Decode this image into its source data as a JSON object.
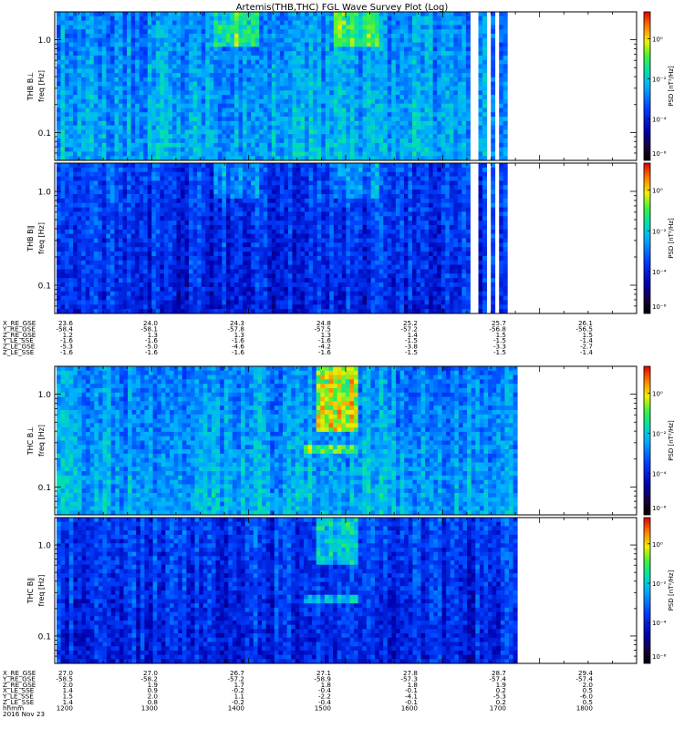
{
  "title": "Artemis(THB,THC) FGL Wave Survey Plot (Log)",
  "chart_data": [
    {
      "type": "heatmap",
      "probe": "THB",
      "component": "perp",
      "ylabel": "THB B⊥",
      "yunit": "freq [Hz]",
      "yscale": "log",
      "ylim": [
        0.05,
        2.0
      ],
      "yticks": [
        {
          "v": 1.0,
          "label": "1.0"
        },
        {
          "v": 0.1,
          "label": "0.1"
        }
      ],
      "data_extent_fraction": 0.785,
      "gap_regions": [
        [
          0.715,
          0.73
        ],
        [
          0.74,
          0.75
        ],
        [
          0.758,
          0.763
        ],
        [
          0.778,
          0.783
        ]
      ],
      "features": [
        {
          "t": [
            0.27,
            0.35
          ],
          "f": [
            0.8,
            2.0
          ],
          "level": "high"
        },
        {
          "t": [
            0.48,
            0.56
          ],
          "f": [
            0.8,
            2.0
          ],
          "level": "high"
        }
      ],
      "colorbar": {
        "label": "PSD [nT²/Hz]",
        "scale": "log",
        "ticks": [
          "10⁰",
          "10⁻²",
          "10⁻⁴",
          "10⁻⁶"
        ]
      }
    },
    {
      "type": "heatmap",
      "probe": "THB",
      "component": "par",
      "ylabel": "THB B∥",
      "yunit": "freq [Hz]",
      "yscale": "log",
      "ylim": [
        0.05,
        2.0
      ],
      "yticks": [
        {
          "v": 1.0,
          "label": "1.0"
        },
        {
          "v": 0.1,
          "label": "0.1"
        }
      ],
      "data_extent_fraction": 0.785,
      "gap_regions": [
        [
          0.715,
          0.73
        ],
        [
          0.74,
          0.75
        ],
        [
          0.758,
          0.763
        ],
        [
          0.778,
          0.783
        ]
      ],
      "features": [
        {
          "t": [
            0.27,
            0.35
          ],
          "f": [
            0.8,
            2.0
          ],
          "level": "medium"
        },
        {
          "t": [
            0.48,
            0.56
          ],
          "f": [
            0.8,
            2.0
          ],
          "level": "medium"
        }
      ],
      "colorbar": {
        "label": "PSD [nT²/Hz]",
        "scale": "log",
        "ticks": [
          "10⁰",
          "10⁻²",
          "10⁻⁴",
          "10⁻⁶"
        ]
      }
    },
    {
      "type": "heatmap",
      "probe": "THC",
      "component": "perp",
      "ylabel": "THC B⊥",
      "yunit": "freq [Hz]",
      "yscale": "log",
      "ylim": [
        0.05,
        2.0
      ],
      "yticks": [
        {
          "v": 1.0,
          "label": "1.0"
        },
        {
          "v": 0.1,
          "label": "0.1"
        }
      ],
      "data_extent_fraction": 0.795,
      "gap_regions": [],
      "features": [
        {
          "t": [
            0.45,
            0.52
          ],
          "f": [
            0.4,
            2.0
          ],
          "level": "very-high"
        },
        {
          "t": [
            0.43,
            0.52
          ],
          "f": [
            0.23,
            0.28
          ],
          "level": "high"
        }
      ],
      "colorbar": {
        "label": "PSD [nT²/Hz]",
        "scale": "log",
        "ticks": [
          "10⁰",
          "10⁻²",
          "10⁻⁴",
          "10⁻⁶"
        ]
      }
    },
    {
      "type": "heatmap",
      "probe": "THC",
      "component": "par",
      "ylabel": "THC B∥",
      "yunit": "freq [Hz]",
      "yscale": "log",
      "ylim": [
        0.05,
        2.0
      ],
      "yticks": [
        {
          "v": 1.0,
          "label": "1.0"
        },
        {
          "v": 0.1,
          "label": "0.1"
        }
      ],
      "data_extent_fraction": 0.795,
      "gap_regions": [],
      "features": [
        {
          "t": [
            0.45,
            0.52
          ],
          "f": [
            0.6,
            2.0
          ],
          "level": "high"
        },
        {
          "t": [
            0.43,
            0.52
          ],
          "f": [
            0.23,
            0.28
          ],
          "level": "high"
        }
      ],
      "colorbar": {
        "label": "PSD [nT²/Hz]",
        "scale": "log",
        "ticks": [
          "10⁰",
          "10⁻²",
          "10⁻⁴",
          "10⁻⁶"
        ]
      }
    }
  ],
  "ephemeris": [
    {
      "labels": [
        "X_RE_GSE",
        "Y_RE_GSE",
        "Z_RE_GSE",
        "Y_LE_SSE",
        "Z_LE_GSE",
        "Z_LE_SSE"
      ],
      "columns": [
        [
          "23.6",
          "-58.4",
          "1.2",
          "-1.6",
          "-5.3",
          "-1.6"
        ],
        [
          "24.0",
          "-58.1",
          "1.3",
          "-1.6",
          "-5.0",
          "-1.6"
        ],
        [
          "24.3",
          "-57.8",
          "1.3",
          "-1.6",
          "-4.6",
          "-1.6"
        ],
        [
          "24.8",
          "-57.5",
          "1.3",
          "-1.6",
          "-4.2",
          "-1.6"
        ],
        [
          "25.2",
          "-57.2",
          "1.4",
          "-1.5",
          "-3.8",
          "-1.5"
        ],
        [
          "25.7",
          "-56.8",
          "1.5",
          "-1.5",
          "-3.3",
          "-1.5"
        ],
        [
          "26.1",
          "-56.5",
          "1.5",
          "-1.4",
          "-2.7",
          "-1.4"
        ]
      ]
    },
    {
      "labels": [
        "X_RE_GSE",
        "Y_RE_GSE",
        "Z_RE_GSE",
        "X_LE_SSE",
        "Y_LE_SSE",
        "Z_LE_SSE",
        "hhmm",
        "2016 Nov 23"
      ],
      "columns": [
        [
          "27.0",
          "-58.5",
          "2.0",
          "1.4",
          "1.5",
          "1.4",
          "1200"
        ],
        [
          "27.0",
          "-58.2",
          "1.9",
          "0.9",
          "2.0",
          "0.8",
          "1300"
        ],
        [
          "26.7",
          "-57.2",
          "1.7",
          "-0.2",
          "1.1",
          "-0.2",
          "1400"
        ],
        [
          "27.1",
          "-58.9",
          "1.8",
          "-0.4",
          "-2.2",
          "-0.4",
          "1500"
        ],
        [
          "27.8",
          "-57.3",
          "1.8",
          "-0.1",
          "-4.1",
          "-0.1",
          "1600"
        ],
        [
          "28.7",
          "-57.4",
          "1.9",
          "0.2",
          "-5.3",
          "0.2",
          "1700"
        ],
        [
          "29.4",
          "-57.4",
          "2.0",
          "0.5",
          "-6.0",
          "0.5",
          "1800"
        ]
      ]
    }
  ]
}
